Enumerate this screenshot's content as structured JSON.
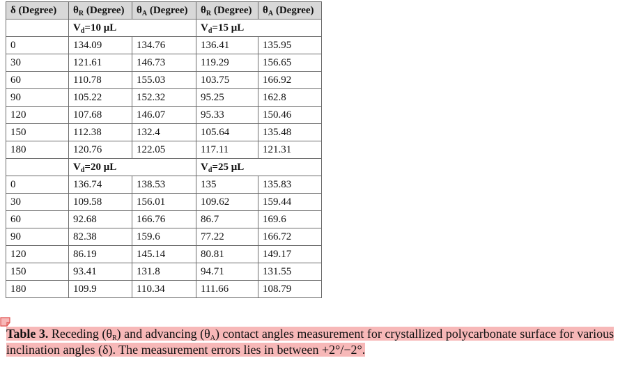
{
  "table": {
    "header": [
      {
        "pre": "δ (Degree)",
        "sub": "",
        "post": ""
      },
      {
        "pre": "θ",
        "sub": "R",
        "post": " (Degree)"
      },
      {
        "pre": "θ",
        "sub": "A",
        "post": " (Degree)"
      },
      {
        "pre": "θ",
        "sub": "R",
        "post": " (Degree)"
      },
      {
        "pre": "θ",
        "sub": "A",
        "post": " (Degree)"
      }
    ],
    "groups": [
      {
        "left": {
          "v": "V",
          "sub": "d",
          "eq": "=10 μL"
        },
        "right": {
          "v": "V",
          "sub": "d",
          "eq": "=15 μL"
        },
        "rows": [
          [
            "0",
            "134.09",
            "134.76",
            "136.41",
            "135.95"
          ],
          [
            "30",
            "121.61",
            "146.73",
            "119.29",
            "156.65"
          ],
          [
            "60",
            "110.78",
            "155.03",
            "103.75",
            "166.92"
          ],
          [
            "90",
            "105.22",
            "152.32",
            "95.25",
            "162.8"
          ],
          [
            "120",
            "107.68",
            "146.07",
            "95.33",
            "150.46"
          ],
          [
            "150",
            "112.38",
            "132.4",
            "105.64",
            "135.48"
          ],
          [
            "180",
            "120.76",
            "122.05",
            "117.11",
            "121.31"
          ]
        ]
      },
      {
        "left": {
          "v": "V",
          "sub": "d",
          "eq": "=20 μL"
        },
        "right": {
          "v": "V",
          "sub": "d",
          "eq": "=25 μL"
        },
        "rows": [
          [
            "0",
            "136.74",
            "138.53",
            "135",
            "135.83"
          ],
          [
            "30",
            "109.58",
            "156.01",
            "109.62",
            "159.44"
          ],
          [
            "60",
            "92.68",
            "166.76",
            "86.7",
            "169.6"
          ],
          [
            "90",
            "82.38",
            "159.6",
            "77.22",
            "166.72"
          ],
          [
            "120",
            "86.19",
            "145.14",
            "80.81",
            "149.17"
          ],
          [
            "150",
            "93.41",
            "131.8",
            "94.71",
            "131.55"
          ],
          [
            "180",
            "109.9",
            "110.34",
            "111.66",
            "108.79"
          ]
        ]
      }
    ]
  },
  "caption": {
    "label": "Table 3.",
    "t1": " Receding (θ",
    "s1": "R",
    "t2": ") and advancing (θ",
    "s2": "A",
    "t3": ") contact angles measurement for crystallized polycarbonate surface for various inclination angles (δ). The measurement errors lies in between +2°/−2°."
  },
  "colors": {
    "header_bg": "#d8d8d8",
    "highlight": "#f7b8b8",
    "note_icon": "#e0524f"
  },
  "icons": {
    "annotation": "note-icon"
  }
}
